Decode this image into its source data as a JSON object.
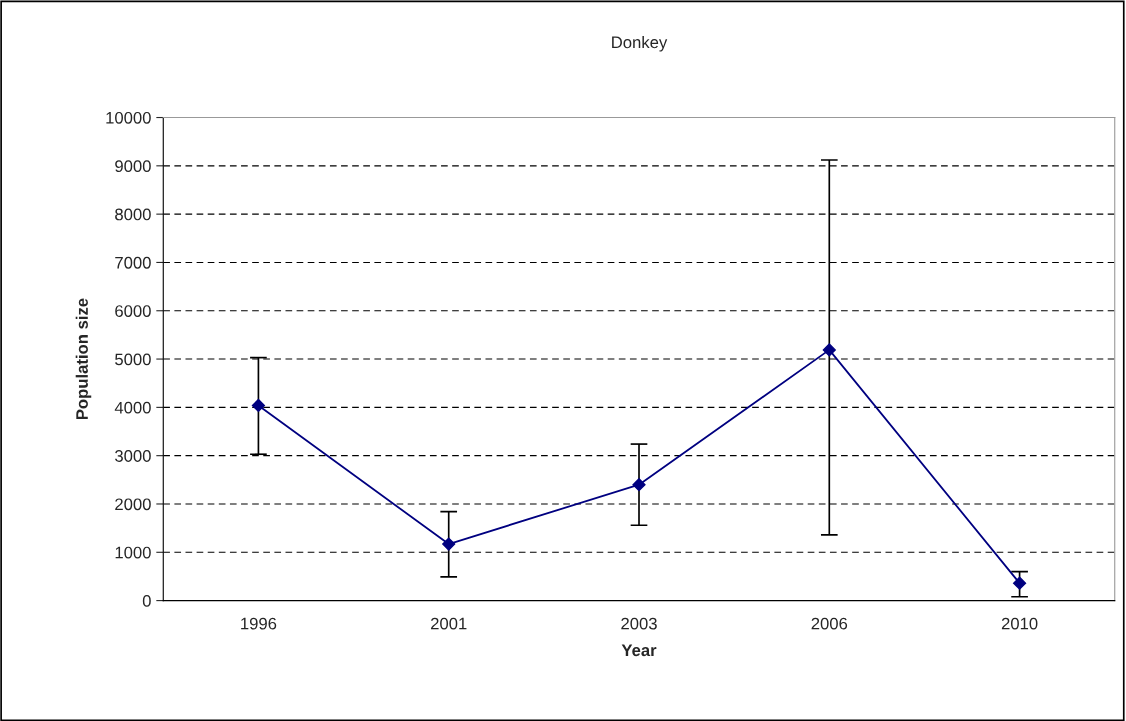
{
  "chart_data": {
    "type": "line",
    "title": "Donkey",
    "xlabel": "Year",
    "ylabel": "Population size",
    "categories": [
      "1996",
      "2001",
      "2003",
      "2006",
      "2010"
    ],
    "series": [
      {
        "color": "#000080",
        "values": [
          4040,
          1170,
          2400,
          5190,
          360
        ],
        "errors": [
          [
            3030,
            5030
          ],
          [
            490,
            1840
          ],
          [
            1560,
            3240
          ],
          [
            1360,
            9120
          ],
          [
            80,
            600
          ]
        ]
      }
    ],
    "ylim": [
      0,
      10000
    ],
    "yticks": [
      0,
      1000,
      2000,
      3000,
      4000,
      5000,
      6000,
      7000,
      8000,
      9000,
      10000
    ],
    "grid": "y",
    "line_style": "solid",
    "marker": "diamond",
    "legend": false
  }
}
